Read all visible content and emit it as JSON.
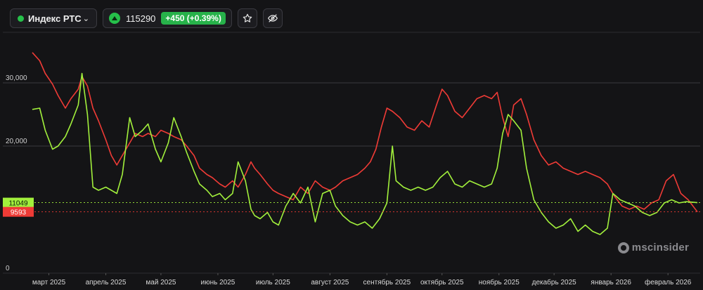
{
  "toolbar": {
    "instrument": "Индекс РТС",
    "price": "115290",
    "change": "+450 (+0.39%)",
    "colors": {
      "up": "#26c04a"
    },
    "icons": [
      "chevron-down-icon",
      "up-triangle-icon",
      "star-icon",
      "eye-off-icon"
    ]
  },
  "watermark": "mscinsider",
  "chart_data": {
    "type": "line",
    "y_ticks": [
      0,
      20000,
      30000
    ],
    "y_tick_labels": [
      "0",
      "20,000",
      "30,000"
    ],
    "ylim": [
      0,
      38000
    ],
    "grid": true,
    "x_tick_labels": [
      "март 2025",
      "апрель 2025",
      "май 2025",
      "июнь 2025",
      "июль 2025",
      "август 2025",
      "сентябрь 2025",
      "октябрь 2025",
      "ноябрь 2025",
      "декабрь 2025",
      "январь 2026",
      "февраль 2026"
    ],
    "x_range": [
      "2025-02-20",
      "2026-02-17"
    ],
    "series": [
      {
        "color": "#ef3b36",
        "current_label": "9593",
        "current_value": 9593,
        "points": [
          [
            "2025-02-20",
            34800
          ],
          [
            "2025-02-24",
            33500
          ],
          [
            "2025-02-27",
            31500
          ],
          [
            "2025-03-03",
            29800
          ],
          [
            "2025-03-06",
            28000
          ],
          [
            "2025-03-10",
            26000
          ],
          [
            "2025-03-13",
            27500
          ],
          [
            "2025-03-17",
            29000
          ],
          [
            "2025-03-19",
            31000
          ],
          [
            "2025-03-22",
            29500
          ],
          [
            "2025-03-25",
            26000
          ],
          [
            "2025-03-28",
            24000
          ],
          [
            "2025-04-01",
            21000
          ],
          [
            "2025-04-04",
            18500
          ],
          [
            "2025-04-07",
            17000
          ],
          [
            "2025-04-10",
            18500
          ],
          [
            "2025-04-14",
            20500
          ],
          [
            "2025-04-17",
            22000
          ],
          [
            "2025-04-21",
            21500
          ],
          [
            "2025-04-24",
            22000
          ],
          [
            "2025-04-28",
            21500
          ],
          [
            "2025-05-01",
            22500
          ],
          [
            "2025-05-05",
            22000
          ],
          [
            "2025-05-08",
            21500
          ],
          [
            "2025-05-12",
            21000
          ],
          [
            "2025-05-15",
            20000
          ],
          [
            "2025-05-19",
            18500
          ],
          [
            "2025-05-22",
            16500
          ],
          [
            "2025-05-26",
            15500
          ],
          [
            "2025-05-29",
            15000
          ],
          [
            "2025-06-02",
            14000
          ],
          [
            "2025-06-05",
            13500
          ],
          [
            "2025-06-09",
            14500
          ],
          [
            "2025-06-12",
            13500
          ],
          [
            "2025-06-16",
            15500
          ],
          [
            "2025-06-19",
            17500
          ],
          [
            "2025-06-21",
            16500
          ],
          [
            "2025-06-24",
            15500
          ],
          [
            "2025-06-28",
            14000
          ],
          [
            "2025-07-01",
            13000
          ],
          [
            "2025-07-04",
            12500
          ],
          [
            "2025-07-08",
            12000
          ],
          [
            "2025-07-12",
            11500
          ],
          [
            "2025-07-16",
            13500
          ],
          [
            "2025-07-20",
            12500
          ],
          [
            "2025-07-24",
            14500
          ],
          [
            "2025-07-28",
            13500
          ],
          [
            "2025-08-01",
            13000
          ],
          [
            "2025-08-04",
            13500
          ],
          [
            "2025-08-08",
            14500
          ],
          [
            "2025-08-12",
            15000
          ],
          [
            "2025-08-16",
            15500
          ],
          [
            "2025-08-20",
            16500
          ],
          [
            "2025-08-23",
            17500
          ],
          [
            "2025-08-26",
            19500
          ],
          [
            "2025-08-29",
            23000
          ],
          [
            "2025-09-01",
            26000
          ],
          [
            "2025-09-04",
            25500
          ],
          [
            "2025-09-08",
            24500
          ],
          [
            "2025-09-12",
            23000
          ],
          [
            "2025-09-16",
            22500
          ],
          [
            "2025-09-20",
            24000
          ],
          [
            "2025-09-24",
            23000
          ],
          [
            "2025-09-28",
            26500
          ],
          [
            "2025-10-01",
            29000
          ],
          [
            "2025-10-04",
            28000
          ],
          [
            "2025-10-08",
            25500
          ],
          [
            "2025-10-12",
            24500
          ],
          [
            "2025-10-16",
            26000
          ],
          [
            "2025-10-20",
            27500
          ],
          [
            "2025-10-24",
            28000
          ],
          [
            "2025-10-28",
            27500
          ],
          [
            "2025-10-31",
            28500
          ],
          [
            "2025-11-03",
            24500
          ],
          [
            "2025-11-06",
            21500
          ],
          [
            "2025-11-09",
            26500
          ],
          [
            "2025-11-13",
            27500
          ],
          [
            "2025-11-16",
            25000
          ],
          [
            "2025-11-20",
            21000
          ],
          [
            "2025-11-24",
            18500
          ],
          [
            "2025-11-28",
            17000
          ],
          [
            "2025-12-02",
            17500
          ],
          [
            "2025-12-06",
            16500
          ],
          [
            "2025-12-10",
            16000
          ],
          [
            "2025-12-14",
            15500
          ],
          [
            "2025-12-18",
            16000
          ],
          [
            "2025-12-22",
            15500
          ],
          [
            "2025-12-26",
            15000
          ],
          [
            "2025-12-30",
            14000
          ],
          [
            "2026-01-03",
            12000
          ],
          [
            "2026-01-07",
            10500
          ],
          [
            "2026-01-11",
            10000
          ],
          [
            "2026-01-15",
            10500
          ],
          [
            "2026-01-19",
            10000
          ],
          [
            "2026-01-23",
            11000
          ],
          [
            "2026-01-27",
            11500
          ],
          [
            "2026-01-31",
            14500
          ],
          [
            "2026-02-04",
            15500
          ],
          [
            "2026-02-08",
            12500
          ],
          [
            "2026-02-12",
            11500
          ],
          [
            "2026-02-17",
            9593
          ]
        ]
      },
      {
        "color": "#a2f03c",
        "current_label": "11049",
        "current_value": 11049,
        "points": [
          [
            "2025-02-20",
            25800
          ],
          [
            "2025-02-24",
            26000
          ],
          [
            "2025-02-27",
            22500
          ],
          [
            "2025-03-03",
            19500
          ],
          [
            "2025-03-06",
            20000
          ],
          [
            "2025-03-10",
            21500
          ],
          [
            "2025-03-13",
            23500
          ],
          [
            "2025-03-17",
            26500
          ],
          [
            "2025-03-19",
            31500
          ],
          [
            "2025-03-22",
            25000
          ],
          [
            "2025-03-25",
            13500
          ],
          [
            "2025-03-28",
            13000
          ],
          [
            "2025-04-01",
            13500
          ],
          [
            "2025-04-04",
            13000
          ],
          [
            "2025-04-07",
            12500
          ],
          [
            "2025-04-10",
            15500
          ],
          [
            "2025-04-14",
            24500
          ],
          [
            "2025-04-17",
            21500
          ],
          [
            "2025-04-21",
            22500
          ],
          [
            "2025-04-24",
            23500
          ],
          [
            "2025-04-28",
            19500
          ],
          [
            "2025-05-01",
            17500
          ],
          [
            "2025-05-05",
            20500
          ],
          [
            "2025-05-08",
            24500
          ],
          [
            "2025-05-12",
            21500
          ],
          [
            "2025-05-15",
            19000
          ],
          [
            "2025-05-19",
            16000
          ],
          [
            "2025-05-22",
            14000
          ],
          [
            "2025-05-26",
            13000
          ],
          [
            "2025-05-29",
            12000
          ],
          [
            "2025-06-02",
            12500
          ],
          [
            "2025-06-05",
            11500
          ],
          [
            "2025-06-09",
            12500
          ],
          [
            "2025-06-12",
            17500
          ],
          [
            "2025-06-16",
            14500
          ],
          [
            "2025-06-19",
            10000
          ],
          [
            "2025-06-21",
            9000
          ],
          [
            "2025-06-24",
            8500
          ],
          [
            "2025-06-28",
            9500
          ],
          [
            "2025-07-01",
            8000
          ],
          [
            "2025-07-04",
            7500
          ],
          [
            "2025-07-08",
            10500
          ],
          [
            "2025-07-12",
            12500
          ],
          [
            "2025-07-16",
            11000
          ],
          [
            "2025-07-20",
            13500
          ],
          [
            "2025-07-24",
            8000
          ],
          [
            "2025-07-28",
            12500
          ],
          [
            "2025-08-01",
            13000
          ],
          [
            "2025-08-04",
            10500
          ],
          [
            "2025-08-08",
            9000
          ],
          [
            "2025-08-12",
            8000
          ],
          [
            "2025-08-16",
            7500
          ],
          [
            "2025-08-20",
            8000
          ],
          [
            "2025-08-24",
            7000
          ],
          [
            "2025-08-28",
            8500
          ],
          [
            "2025-09-01",
            11000
          ],
          [
            "2025-09-04",
            20000
          ],
          [
            "2025-09-06",
            14500
          ],
          [
            "2025-09-10",
            13500
          ],
          [
            "2025-09-14",
            13000
          ],
          [
            "2025-09-18",
            13500
          ],
          [
            "2025-09-22",
            13000
          ],
          [
            "2025-09-26",
            13500
          ],
          [
            "2025-09-30",
            15000
          ],
          [
            "2025-10-04",
            16000
          ],
          [
            "2025-10-08",
            14000
          ],
          [
            "2025-10-12",
            13500
          ],
          [
            "2025-10-16",
            14500
          ],
          [
            "2025-10-20",
            14000
          ],
          [
            "2025-10-24",
            13500
          ],
          [
            "2025-10-28",
            14000
          ],
          [
            "2025-10-31",
            16500
          ],
          [
            "2025-11-03",
            22000
          ],
          [
            "2025-11-06",
            25000
          ],
          [
            "2025-11-09",
            24000
          ],
          [
            "2025-11-13",
            22500
          ],
          [
            "2025-11-16",
            16500
          ],
          [
            "2025-11-20",
            11500
          ],
          [
            "2025-11-24",
            9500
          ],
          [
            "2025-11-28",
            8000
          ],
          [
            "2025-12-02",
            7000
          ],
          [
            "2025-12-06",
            7500
          ],
          [
            "2025-12-10",
            8500
          ],
          [
            "2025-12-14",
            6500
          ],
          [
            "2025-12-18",
            7500
          ],
          [
            "2025-12-22",
            6500
          ],
          [
            "2025-12-26",
            6000
          ],
          [
            "2025-12-30",
            7000
          ],
          [
            "2026-01-02",
            12500
          ],
          [
            "2026-01-06",
            11500
          ],
          [
            "2026-01-10",
            11000
          ],
          [
            "2026-01-14",
            10500
          ],
          [
            "2026-01-18",
            9500
          ],
          [
            "2026-01-22",
            9000
          ],
          [
            "2026-01-26",
            9500
          ],
          [
            "2026-01-30",
            11000
          ],
          [
            "2026-02-03",
            11500
          ],
          [
            "2026-02-07",
            11000
          ],
          [
            "2026-02-11",
            11200
          ],
          [
            "2026-02-17",
            11049
          ]
        ]
      }
    ]
  }
}
